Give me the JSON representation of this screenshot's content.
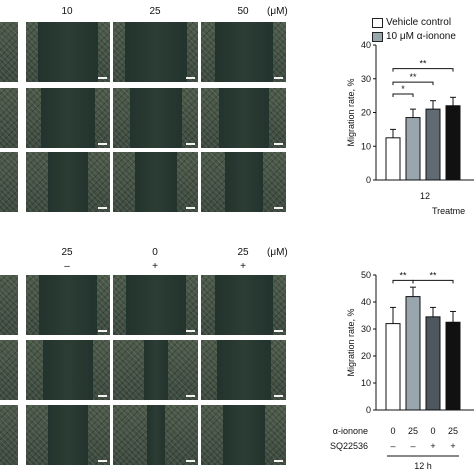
{
  "top": {
    "conc_labels": [
      "10",
      "25",
      "50"
    ],
    "unit": "(μM)"
  },
  "bottom": {
    "conc_labels": [
      "25",
      "0",
      "25"
    ],
    "sq_signs": [
      "–",
      "+",
      "+"
    ],
    "unit": "(μM)"
  },
  "legend": [
    {
      "label": "Vehicle control",
      "color": "#ffffff"
    },
    {
      "label": "10 μM α-ionone",
      "color": "#9aa6ae"
    }
  ],
  "colors": {
    "vehicle": "#ffffff",
    "ionone_light": "#9aa6ae",
    "ionone_mid": "#5f6a72",
    "ionone_dark": "#111111",
    "sq": "#4e575d"
  },
  "chart_data": [
    {
      "type": "bar",
      "ylabel": "Migration rate, %",
      "ylim": [
        0,
        40
      ],
      "yticks": [
        0,
        10,
        20,
        30,
        40
      ],
      "xtick": "12",
      "xlabel": "Treatme",
      "series": [
        {
          "name": "Vehicle control",
          "values": [
            12.5
          ],
          "error": [
            2.5
          ]
        },
        {
          "name": "",
          "values": [
            18.5
          ],
          "error": [
            2.5
          ]
        },
        {
          "name": "",
          "values": [
            21.0
          ],
          "error": [
            2.5
          ]
        },
        {
          "name": "",
          "values": [
            22.0
          ],
          "error": [
            2.5
          ]
        }
      ],
      "significance": [
        "*",
        "**",
        "**"
      ]
    },
    {
      "type": "bar",
      "ylabel": "Migration rate, %",
      "ylim": [
        0,
        50
      ],
      "yticks": [
        0,
        10,
        20,
        30,
        40,
        50
      ],
      "values": [
        32,
        42,
        34.5,
        32.5
      ],
      "errors": [
        6,
        3.5,
        3.5,
        4
      ],
      "row_labels": [
        "α-ionone",
        "SQ22536"
      ],
      "ionone_values": [
        "0",
        "25",
        "0",
        "25"
      ],
      "sq_values": [
        "–",
        "–",
        "+",
        "+"
      ],
      "time_label": "12 h",
      "significance": [
        "**",
        "**"
      ]
    }
  ]
}
